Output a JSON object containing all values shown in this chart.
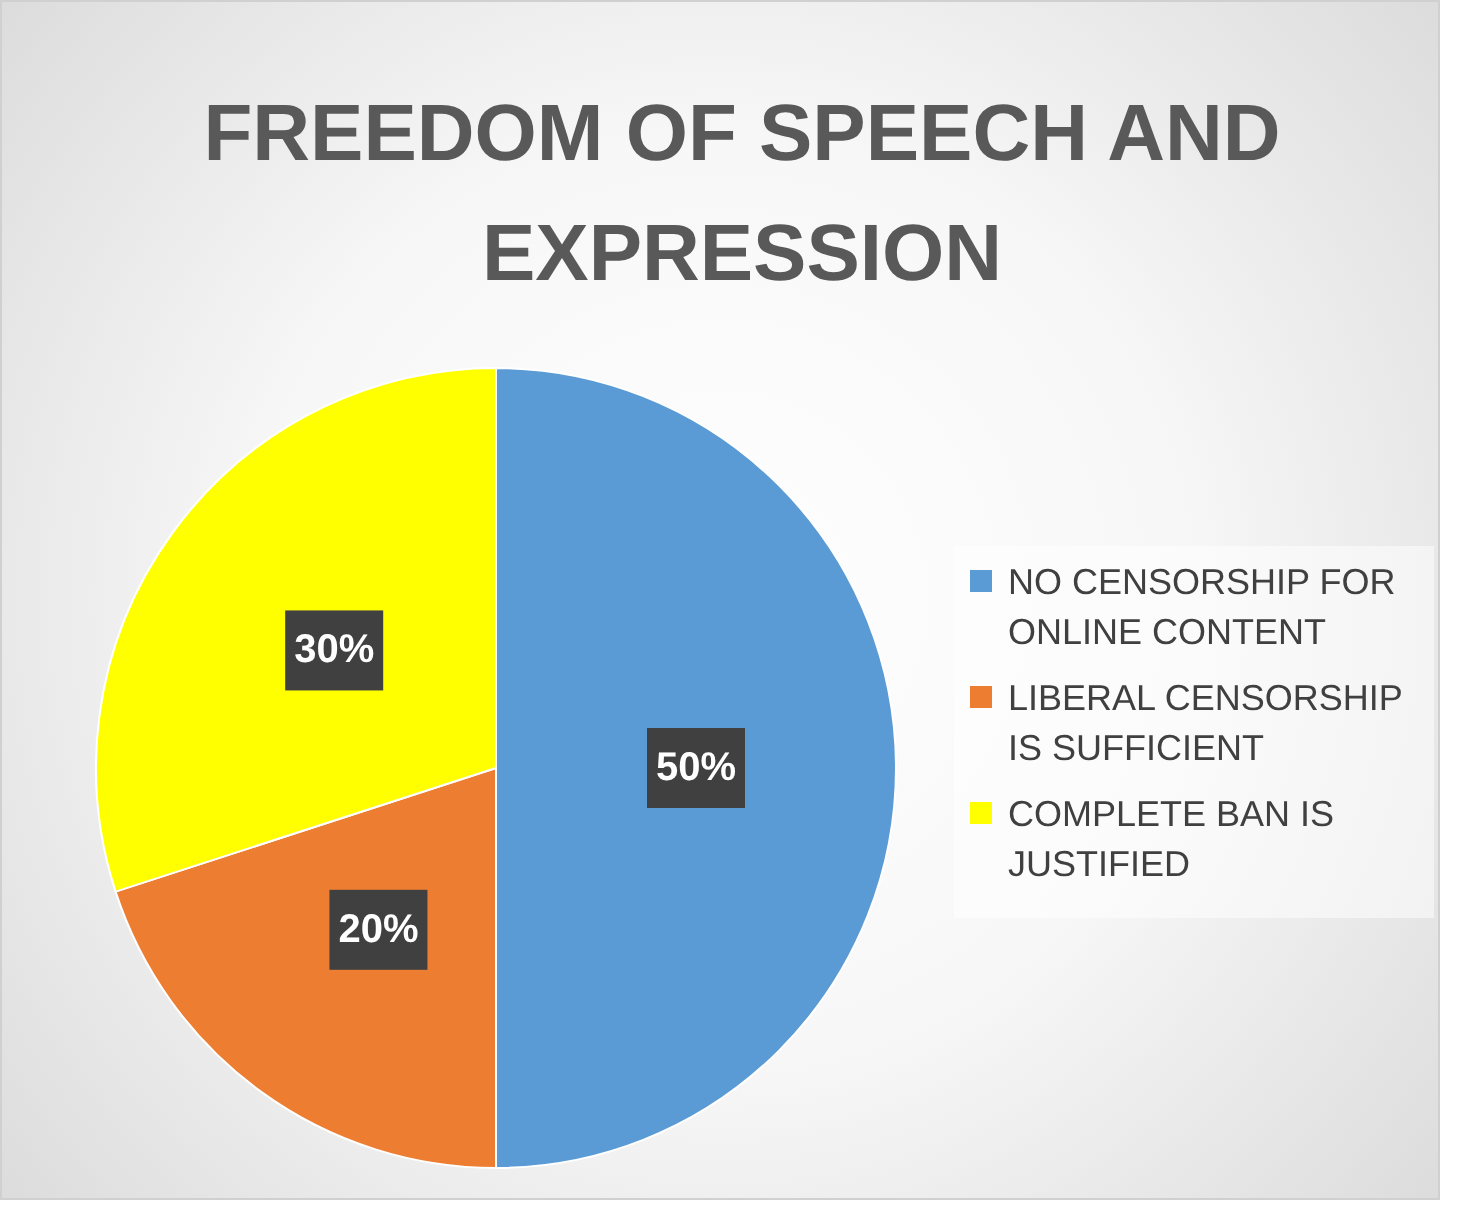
{
  "chart_data": {
    "type": "pie",
    "title": "FREEDOM OF SPEECH AND EXPRESSION",
    "categories": [
      "NO CENSORSHIP FOR ONLINE CONTENT",
      "LIBERAL CENSORSHIP IS SUFFICIENT",
      "COMPLETE BAN IS JUSTIFIED"
    ],
    "values": [
      50,
      20,
      30
    ],
    "colors": [
      "#5b9bd5",
      "#ed7d31",
      "#ffff00"
    ],
    "value_labels": [
      "50%",
      "20%",
      "30%"
    ],
    "legend": "right"
  }
}
